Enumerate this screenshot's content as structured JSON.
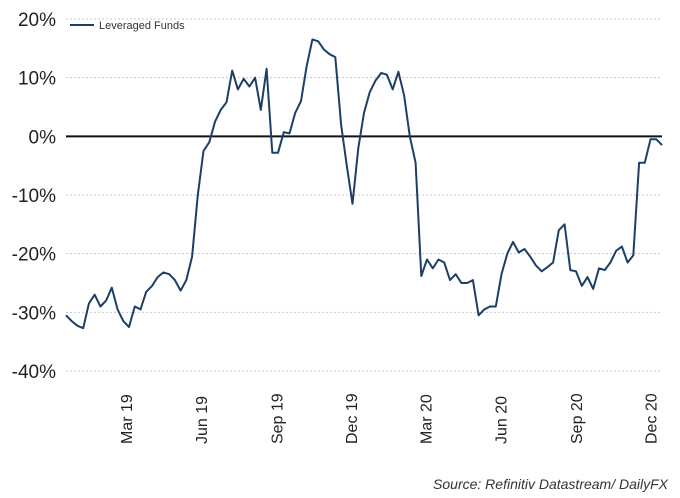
{
  "chart_data": {
    "type": "line",
    "title": "",
    "xlabel": "",
    "ylabel": "",
    "ylim": [
      -40,
      20
    ],
    "y_ticks": [
      20,
      10,
      0,
      -10,
      -20,
      -30,
      -40
    ],
    "y_tick_labels": [
      "20%",
      "10%",
      "0%",
      "-10%",
      "-20%",
      "-30%",
      "-40%"
    ],
    "x_ticks": [
      "Mar 19",
      "Jun 19",
      "Sep 19",
      "Dec 19",
      "Mar 20",
      "Jun 20",
      "Sep 20",
      "Dec 20"
    ],
    "grid": "horizontal dotted",
    "zero_line": true,
    "legend_position": "top-left",
    "series": [
      {
        "name": "Leveraged Funds",
        "color": "#1c3f66",
        "points": [
          [
            "2019-01-01",
            -30.5
          ],
          [
            "2019-01-08",
            -31.5
          ],
          [
            "2019-01-15",
            -32.3
          ],
          [
            "2019-01-22",
            -32.7
          ],
          [
            "2019-01-29",
            -28.5
          ],
          [
            "2019-02-05",
            -27.0
          ],
          [
            "2019-02-12",
            -29.0
          ],
          [
            "2019-02-19",
            -28.0
          ],
          [
            "2019-02-26",
            -25.8
          ],
          [
            "2019-03-05",
            -29.5
          ],
          [
            "2019-03-12",
            -31.5
          ],
          [
            "2019-03-19",
            -32.5
          ],
          [
            "2019-03-26",
            -29.0
          ],
          [
            "2019-04-02",
            -29.5
          ],
          [
            "2019-04-09",
            -26.5
          ],
          [
            "2019-04-16",
            -25.5
          ],
          [
            "2019-04-23",
            -24.0
          ],
          [
            "2019-04-30",
            -23.2
          ],
          [
            "2019-05-07",
            -23.5
          ],
          [
            "2019-05-14",
            -24.5
          ],
          [
            "2019-05-21",
            -26.3
          ],
          [
            "2019-05-28",
            -24.5
          ],
          [
            "2019-06-04",
            -20.5
          ],
          [
            "2019-06-11",
            -10.0
          ],
          [
            "2019-06-18",
            -2.5
          ],
          [
            "2019-06-25",
            -1.0
          ],
          [
            "2019-07-02",
            2.5
          ],
          [
            "2019-07-09",
            4.5
          ],
          [
            "2019-07-16",
            5.8
          ],
          [
            "2019-07-23",
            11.2
          ],
          [
            "2019-07-30",
            8.0
          ],
          [
            "2019-08-06",
            9.8
          ],
          [
            "2019-08-13",
            8.5
          ],
          [
            "2019-08-20",
            10.0
          ],
          [
            "2019-08-27",
            4.5
          ],
          [
            "2019-09-03",
            11.5
          ],
          [
            "2019-09-10",
            -2.8
          ],
          [
            "2019-09-17",
            -2.8
          ],
          [
            "2019-09-24",
            0.7
          ],
          [
            "2019-10-01",
            0.5
          ],
          [
            "2019-10-08",
            4.0
          ],
          [
            "2019-10-15",
            6.0
          ],
          [
            "2019-10-22",
            12.0
          ],
          [
            "2019-10-29",
            16.5
          ],
          [
            "2019-11-05",
            16.2
          ],
          [
            "2019-11-12",
            14.8
          ],
          [
            "2019-11-19",
            14.0
          ],
          [
            "2019-11-26",
            13.5
          ],
          [
            "2019-12-03",
            2.0
          ],
          [
            "2019-12-10",
            -5.0
          ],
          [
            "2019-12-17",
            -11.5
          ],
          [
            "2019-12-24",
            -2.0
          ],
          [
            "2019-12-31",
            4.0
          ],
          [
            "2020-01-07",
            7.5
          ],
          [
            "2020-01-14",
            9.5
          ],
          [
            "2020-01-21",
            10.8
          ],
          [
            "2020-01-28",
            10.5
          ],
          [
            "2020-02-04",
            8.0
          ],
          [
            "2020-02-11",
            11.0
          ],
          [
            "2020-02-18",
            7.0
          ],
          [
            "2020-02-25",
            0.0
          ],
          [
            "2020-03-03",
            -4.5
          ],
          [
            "2020-03-10",
            -23.8
          ],
          [
            "2020-03-17",
            -21.0
          ],
          [
            "2020-03-24",
            -22.5
          ],
          [
            "2020-03-31",
            -21.0
          ],
          [
            "2020-04-07",
            -21.5
          ],
          [
            "2020-04-14",
            -24.5
          ],
          [
            "2020-04-21",
            -23.5
          ],
          [
            "2020-04-28",
            -25.0
          ],
          [
            "2020-05-05",
            -25.0
          ],
          [
            "2020-05-12",
            -24.5
          ],
          [
            "2020-05-19",
            -30.5
          ],
          [
            "2020-05-26",
            -29.5
          ],
          [
            "2020-06-02",
            -29.0
          ],
          [
            "2020-06-09",
            -29.0
          ],
          [
            "2020-06-16",
            -23.5
          ],
          [
            "2020-06-23",
            -20.0
          ],
          [
            "2020-06-30",
            -18.0
          ],
          [
            "2020-07-07",
            -19.8
          ],
          [
            "2020-07-14",
            -19.2
          ],
          [
            "2020-07-21",
            -20.5
          ],
          [
            "2020-07-28",
            -22.0
          ],
          [
            "2020-08-04",
            -23.0
          ],
          [
            "2020-08-11",
            -22.3
          ],
          [
            "2020-08-18",
            -21.5
          ],
          [
            "2020-08-25",
            -16.0
          ],
          [
            "2020-09-01",
            -15.0
          ],
          [
            "2020-09-08",
            -22.8
          ],
          [
            "2020-09-15",
            -23.0
          ],
          [
            "2020-09-22",
            -25.5
          ],
          [
            "2020-09-29",
            -24.0
          ],
          [
            "2020-10-06",
            -26.0
          ],
          [
            "2020-10-13",
            -22.5
          ],
          [
            "2020-10-20",
            -22.8
          ],
          [
            "2020-10-27",
            -21.5
          ],
          [
            "2020-11-03",
            -19.5
          ],
          [
            "2020-11-10",
            -18.8
          ],
          [
            "2020-11-17",
            -21.5
          ],
          [
            "2020-11-24",
            -20.3
          ],
          [
            "2020-12-01",
            -4.5
          ],
          [
            "2020-12-08",
            -4.5
          ],
          [
            "2020-12-15",
            -0.5
          ],
          [
            "2020-12-22",
            -0.5
          ],
          [
            "2020-12-29",
            -1.5
          ]
        ]
      }
    ]
  },
  "source": "Source: Refinitiv Datastream/ DailyFX"
}
